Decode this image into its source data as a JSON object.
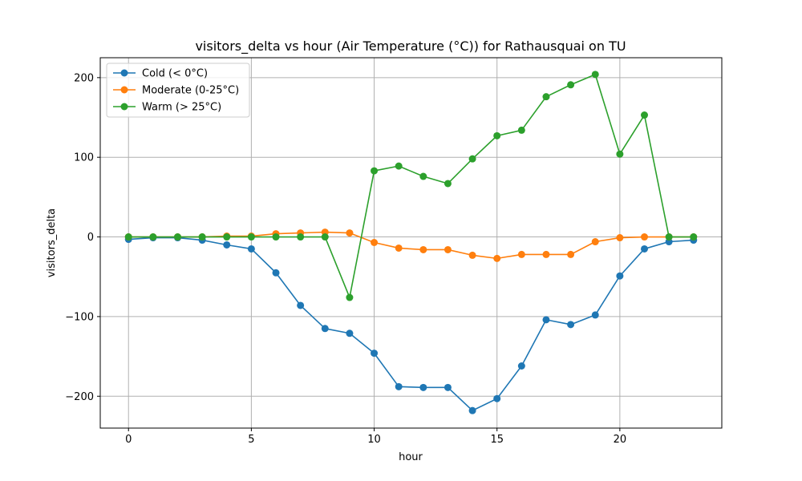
{
  "chart_data": {
    "type": "line",
    "title": "visitors_delta vs hour (Air Temperature (°C)) for Rathausquai on TU",
    "xlabel": "hour",
    "ylabel": "visitors_delta",
    "xlim": [
      -1.15,
      24.15
    ],
    "ylim": [
      -240,
      225
    ],
    "xticks": [
      0,
      5,
      10,
      15,
      20
    ],
    "yticks": [
      -200,
      -100,
      0,
      100,
      200
    ],
    "ytick_labels": [
      "−200",
      "−100",
      "0",
      "100",
      "200"
    ],
    "grid": true,
    "legend_position": "upper-left",
    "x": [
      0,
      1,
      2,
      3,
      4,
      5,
      6,
      7,
      8,
      9,
      10,
      11,
      12,
      13,
      14,
      15,
      16,
      17,
      18,
      19,
      20,
      21,
      22,
      23
    ],
    "series": [
      {
        "name": "Cold (< 0°C)",
        "color": "#1f77b4",
        "values": [
          -3,
          -1,
          -1,
          -4,
          -10,
          -15,
          -45,
          -86,
          -115,
          -121,
          -146,
          -188,
          -189,
          -189,
          -218,
          -203,
          -162,
          -104,
          -110,
          -98,
          -49,
          -15,
          -6,
          -4
        ]
      },
      {
        "name": "Moderate (0-25°C)",
        "color": "#ff7f0e",
        "values": [
          0,
          0,
          0,
          0,
          1,
          1,
          4,
          5,
          6,
          5,
          -7,
          -14,
          -16,
          -16,
          -23,
          -27,
          -22,
          -22,
          -22,
          -6,
          -1,
          0,
          0,
          0
        ]
      },
      {
        "name": "Warm (> 25°C)",
        "color": "#2ca02c",
        "values": [
          0,
          0,
          0,
          0,
          0,
          0,
          0,
          0,
          0,
          -76,
          83,
          89,
          76,
          67,
          98,
          127,
          134,
          176,
          191,
          204,
          104,
          153,
          0,
          0
        ]
      }
    ]
  }
}
